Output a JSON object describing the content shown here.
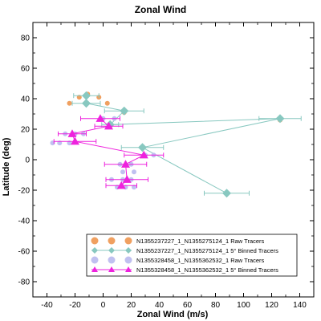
{
  "chart_data": {
    "type": "scatter",
    "title": "Zonal Wind",
    "xlabel": "Zonal Wind (m/s)",
    "ylabel": "Latitude (deg)",
    "xlim": [
      -50,
      150
    ],
    "ylim": [
      -90,
      90
    ],
    "xticks": [
      -40,
      -20,
      0,
      20,
      40,
      60,
      80,
      100,
      120,
      140
    ],
    "yticks": [
      -80,
      -60,
      -40,
      -20,
      0,
      20,
      40,
      60,
      80
    ],
    "grid": false,
    "legend_position": "bottom-right",
    "series": [
      {
        "name": "N1355237227_1_N1355275124_1 Raw Tracers",
        "style": "raw",
        "marker": "circle",
        "color": "#f0a060",
        "points": [
          {
            "x": -24,
            "y": 37
          },
          {
            "x": -17,
            "y": 41
          },
          {
            "x": -11,
            "y": 43
          },
          {
            "x": -3,
            "y": 41
          },
          {
            "x": 3,
            "y": 37
          },
          {
            "x": 15,
            "y": 31
          },
          {
            "x": 5,
            "y": 22
          },
          {
            "x": 126,
            "y": 26
          },
          {
            "x": 28,
            "y": 8
          },
          {
            "x": 88,
            "y": -22
          }
        ]
      },
      {
        "name": "N1355237227_1_N1355275124_1 5° Binned Tracers",
        "style": "binned",
        "marker": "diamond",
        "color": "#88c8c0",
        "points": [
          {
            "x": -12,
            "y": 42,
            "xerr": 9
          },
          {
            "x": -12,
            "y": 37,
            "xerr": 10
          },
          {
            "x": 15,
            "y": 32,
            "xerr": 14
          },
          {
            "x": 5,
            "y": 23,
            "xerr": 6
          },
          {
            "x": 126,
            "y": 27,
            "xerr": 15
          },
          {
            "x": 28,
            "y": 8,
            "xerr": 15
          },
          {
            "x": 88,
            "y": -22,
            "xerr": 16
          }
        ]
      },
      {
        "name": "N1355328458_1_N1355362532_1 Raw Tracers",
        "style": "raw",
        "marker": "circle",
        "color": "#c0c0f0",
        "points": [
          {
            "x": -36,
            "y": 11
          },
          {
            "x": -31,
            "y": 11
          },
          {
            "x": -24,
            "y": 11
          },
          {
            "x": -27,
            "y": 17
          },
          {
            "x": -20,
            "y": 17
          },
          {
            "x": -14,
            "y": 17
          },
          {
            "x": 8,
            "y": 27
          },
          {
            "x": 0,
            "y": 27
          },
          {
            "x": 30,
            "y": 3
          },
          {
            "x": 36,
            "y": 3
          },
          {
            "x": 12,
            "y": -3
          },
          {
            "x": 20,
            "y": -3
          },
          {
            "x": 14,
            "y": -8
          },
          {
            "x": 22,
            "y": -8
          },
          {
            "x": 6,
            "y": -13
          },
          {
            "x": 14,
            "y": -13
          },
          {
            "x": 20,
            "y": -13
          },
          {
            "x": 10,
            "y": -18
          },
          {
            "x": 16,
            "y": -18
          },
          {
            "x": 22,
            "y": -18
          }
        ]
      },
      {
        "name": "N1355328458_1_N1355362532_1 5° Binned Tracers",
        "style": "binned",
        "marker": "triangle",
        "color": "#ee22dd",
        "points": [
          {
            "x": -2,
            "y": 27,
            "xerr": 14
          },
          {
            "x": 4,
            "y": 22,
            "xerr": 10
          },
          {
            "x": -22,
            "y": 17,
            "xerr": 10
          },
          {
            "x": -20,
            "y": 12,
            "xerr": 15
          },
          {
            "x": 29,
            "y": 3,
            "xerr": 14
          },
          {
            "x": 16,
            "y": -3,
            "xerr": 15
          },
          {
            "x": 17,
            "y": -13,
            "xerr": 15
          },
          {
            "x": 13,
            "y": -17,
            "xerr": 11
          }
        ]
      }
    ]
  }
}
